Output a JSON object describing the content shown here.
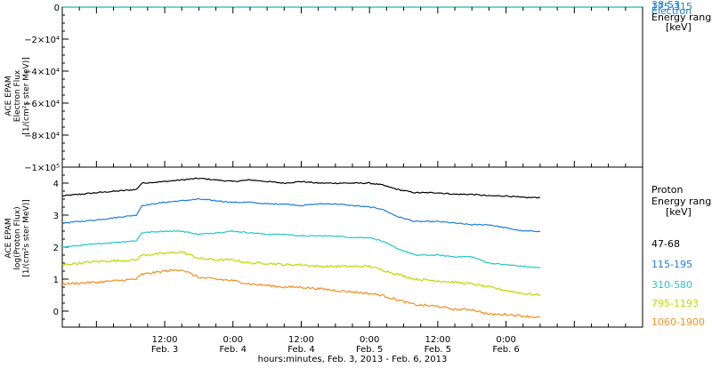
{
  "chart_data": [
    {
      "type": "line",
      "title": "",
      "ylabel_lines": [
        "ACE EPAM",
        "Electron Flux",
        "[1/(cm²s ster MeV)]"
      ],
      "ylim": [
        -100000,
        0
      ],
      "y_ticks": [
        {
          "v": 0,
          "label": "0"
        },
        {
          "v": -20000,
          "label": "−2×10⁴"
        },
        {
          "v": -40000,
          "label": "−4×10⁴"
        },
        {
          "v": -60000,
          "label": "−6×10⁴"
        },
        {
          "v": -80000,
          "label": "−8×10⁴"
        },
        {
          "v": -100000,
          "label": "−1×10⁵"
        }
      ],
      "legend": {
        "species": "Electron",
        "range_label": "Energy range",
        "unit_label": "[keV]",
        "entries": [
          {
            "name": "38-53",
            "color": "#1f7fd6"
          },
          {
            "name": "175-315",
            "color": "#1f7fd6"
          }
        ]
      },
      "series": [
        {
          "name": "38-53",
          "color": "#1fb4b4",
          "values": [
            0,
            0
          ]
        }
      ]
    },
    {
      "type": "line",
      "title": "",
      "ylabel_lines": [
        "ACE EPAM",
        "log(Proton Flux)",
        "[1/(cm²s ster MeV)]"
      ],
      "ylim": [
        -0.5,
        4.5
      ],
      "y_ticks": [
        {
          "v": 0,
          "label": "0"
        },
        {
          "v": 1,
          "label": "1"
        },
        {
          "v": 2,
          "label": "2"
        },
        {
          "v": 3,
          "label": "3"
        },
        {
          "v": 4,
          "label": "4"
        }
      ],
      "xlabel": "hours:minutes, Feb.  3, 2013 - Feb.  6, 2013",
      "x_range_hours": [
        -6,
        96
      ],
      "x_ticks": [
        {
          "h": 12,
          "time": "12:00",
          "date": "Feb. 3"
        },
        {
          "h": 24,
          "time": "0:00",
          "date": "Feb. 4"
        },
        {
          "h": 36,
          "time": "12:00",
          "date": "Feb. 4"
        },
        {
          "h": 48,
          "time": "0:00",
          "date": "Feb. 5"
        },
        {
          "h": 60,
          "time": "12:00",
          "date": "Feb. 5"
        },
        {
          "h": 72,
          "time": "0:00",
          "date": "Feb. 6"
        }
      ],
      "legend": {
        "species": "Proton",
        "range_label": "Energy range",
        "unit_label": "[keV]"
      },
      "x": [
        -6,
        0,
        7,
        8,
        12,
        15,
        18,
        21,
        24,
        27,
        30,
        33,
        36,
        39,
        42,
        45,
        48,
        50,
        53,
        56,
        60,
        63,
        66,
        69,
        72,
        75,
        78
      ],
      "series": [
        {
          "name": "47-68",
          "color": "#000000",
          "values": [
            3.6,
            3.7,
            3.8,
            4.0,
            4.05,
            4.1,
            4.15,
            4.1,
            4.05,
            4.1,
            4.05,
            4.0,
            4.05,
            4.0,
            4.0,
            4.0,
            4.0,
            3.95,
            3.8,
            3.7,
            3.7,
            3.65,
            3.65,
            3.6,
            3.6,
            3.55,
            3.55
          ]
        },
        {
          "name": "115-195",
          "color": "#1f7fd6",
          "values": [
            2.75,
            2.85,
            3.0,
            3.3,
            3.4,
            3.45,
            3.5,
            3.45,
            3.4,
            3.4,
            3.35,
            3.35,
            3.3,
            3.35,
            3.35,
            3.3,
            3.25,
            3.2,
            2.95,
            2.8,
            2.8,
            2.75,
            2.7,
            2.7,
            2.6,
            2.5,
            2.5
          ]
        },
        {
          "name": "310-580",
          "color": "#20c8c8",
          "values": [
            2.0,
            2.1,
            2.2,
            2.45,
            2.5,
            2.5,
            2.4,
            2.45,
            2.5,
            2.45,
            2.4,
            2.4,
            2.35,
            2.35,
            2.35,
            2.3,
            2.3,
            2.2,
            1.95,
            1.75,
            1.75,
            1.7,
            1.7,
            1.5,
            1.45,
            1.4,
            1.35
          ]
        },
        {
          "name": "795-1193",
          "color": "#b8dc00",
          "values": [
            1.45,
            1.55,
            1.6,
            1.75,
            1.8,
            1.85,
            1.65,
            1.6,
            1.6,
            1.5,
            1.5,
            1.45,
            1.45,
            1.4,
            1.4,
            1.4,
            1.4,
            1.3,
            1.15,
            1.0,
            0.95,
            0.9,
            0.85,
            0.75,
            0.65,
            0.55,
            0.5
          ]
        },
        {
          "name": "1060-1900",
          "color": "#f0901e",
          "values": [
            0.85,
            0.9,
            1.0,
            1.15,
            1.25,
            1.3,
            1.05,
            1.0,
            0.95,
            0.85,
            0.8,
            0.75,
            0.75,
            0.7,
            0.65,
            0.6,
            0.55,
            0.5,
            0.35,
            0.2,
            0.15,
            0.05,
            0.05,
            -0.1,
            -0.1,
            -0.15,
            -0.2
          ]
        }
      ]
    }
  ]
}
